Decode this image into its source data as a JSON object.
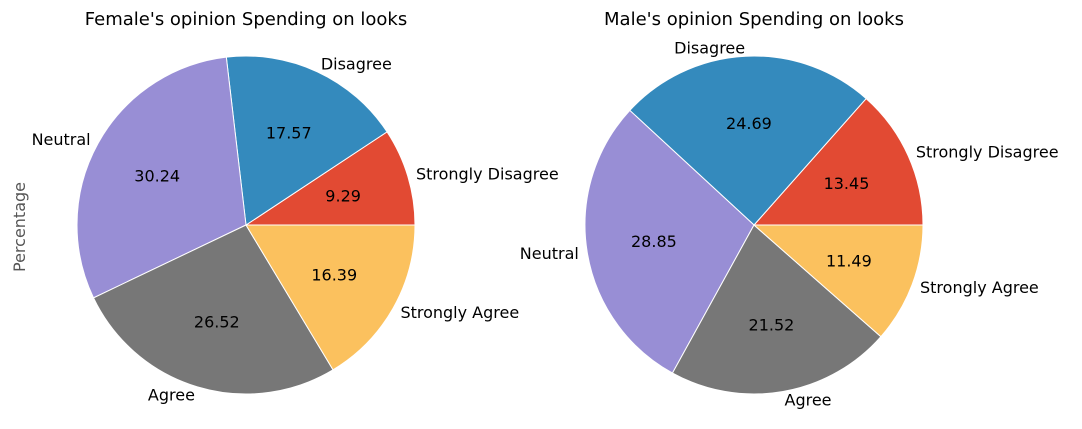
{
  "chart_data": [
    {
      "type": "pie",
      "title": "Female's opinion Spending on looks",
      "ylabel": "Percentage",
      "categories": [
        "Strongly Disagree",
        "Disagree",
        "Neutral",
        "Agree",
        "Strongly Agree"
      ],
      "values": [
        9.29,
        17.57,
        30.24,
        26.52,
        16.39
      ],
      "value_labels": [
        "9.29",
        "17.57",
        "30.24",
        "26.52",
        "16.39"
      ],
      "colors": [
        "#E24A33",
        "#348ABD",
        "#988ED5",
        "#777777",
        "#FBC15E"
      ]
    },
    {
      "type": "pie",
      "title": "Male's opinion Spending on looks",
      "ylabel": "",
      "categories": [
        "Strongly Disagree",
        "Disagree",
        "Neutral",
        "Agree",
        "Strongly Agree"
      ],
      "values": [
        13.45,
        24.69,
        28.85,
        21.52,
        11.49
      ],
      "value_labels": [
        "13.45",
        "24.69",
        "28.85",
        "21.52",
        "11.49"
      ],
      "colors": [
        "#E24A33",
        "#348ABD",
        "#988ED5",
        "#777777",
        "#FBC15E"
      ]
    }
  ]
}
